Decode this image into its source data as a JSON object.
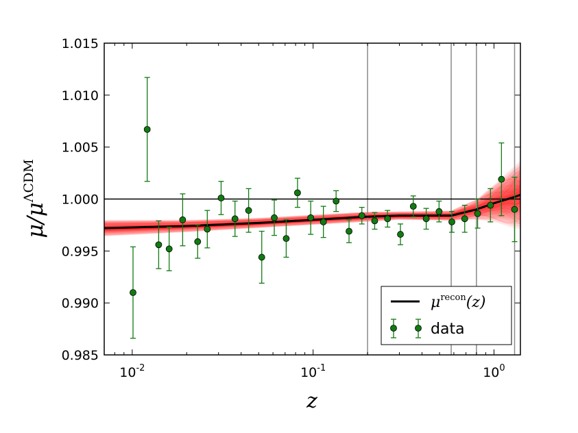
{
  "chart_data": {
    "type": "scatter",
    "title": "",
    "xlabel": "z",
    "ylabel_parts": {
      "base": "μ/μ",
      "sup": "ΛCDM"
    },
    "xscale": "log",
    "xlim": [
      0.007,
      1.4
    ],
    "ylim": [
      0.985,
      1.015
    ],
    "yticks": [
      "0.985",
      "0.990",
      "0.995",
      "1.000",
      "1.005",
      "1.010",
      "1.015"
    ],
    "xticks": [
      {
        "value": 0.01,
        "base": "10",
        "exp": "-2"
      },
      {
        "value": 0.1,
        "base": "10",
        "exp": "-1"
      },
      {
        "value": 1.0,
        "base": "10",
        "exp": "0"
      }
    ],
    "grid": false,
    "reference_line": {
      "y": 1.0
    },
    "vertical_lines": [
      0.2,
      0.58,
      0.8,
      1.3
    ],
    "legend": {
      "placement": "bottom-right",
      "entries": [
        {
          "label_base": "μ",
          "label_sup": "recon",
          "label_tail": "(z)",
          "kind": "line"
        },
        {
          "label": "data",
          "kind": "errorbar"
        }
      ]
    },
    "series": [
      {
        "name": "data",
        "color": "#117a11",
        "points": [
          {
            "x": 0.0101,
            "y": 0.991,
            "err": 0.0044
          },
          {
            "x": 0.0121,
            "y": 1.0067,
            "err": 0.005
          },
          {
            "x": 0.014,
            "y": 0.9956,
            "err": 0.0023
          },
          {
            "x": 0.016,
            "y": 0.9952,
            "err": 0.0021
          },
          {
            "x": 0.019,
            "y": 0.998,
            "err": 0.0025
          },
          {
            "x": 0.023,
            "y": 0.9959,
            "err": 0.0016
          },
          {
            "x": 0.026,
            "y": 0.9971,
            "err": 0.0018
          },
          {
            "x": 0.031,
            "y": 1.0001,
            "err": 0.0016
          },
          {
            "x": 0.037,
            "y": 0.9981,
            "err": 0.0017
          },
          {
            "x": 0.044,
            "y": 0.9989,
            "err": 0.0021
          },
          {
            "x": 0.052,
            "y": 0.9944,
            "err": 0.0025
          },
          {
            "x": 0.061,
            "y": 0.9982,
            "err": 0.0017
          },
          {
            "x": 0.071,
            "y": 0.9962,
            "err": 0.0018
          },
          {
            "x": 0.082,
            "y": 1.0006,
            "err": 0.0014
          },
          {
            "x": 0.097,
            "y": 0.9982,
            "err": 0.0016
          },
          {
            "x": 0.114,
            "y": 0.9978,
            "err": 0.0015
          },
          {
            "x": 0.134,
            "y": 0.9998,
            "err": 0.001
          },
          {
            "x": 0.158,
            "y": 0.9969,
            "err": 0.0011
          },
          {
            "x": 0.186,
            "y": 0.9984,
            "err": 0.0008
          },
          {
            "x": 0.219,
            "y": 0.9979,
            "err": 0.0008
          },
          {
            "x": 0.258,
            "y": 0.9981,
            "err": 0.0008
          },
          {
            "x": 0.304,
            "y": 0.9966,
            "err": 0.001
          },
          {
            "x": 0.358,
            "y": 0.9993,
            "err": 0.001
          },
          {
            "x": 0.422,
            "y": 0.9981,
            "err": 0.001
          },
          {
            "x": 0.497,
            "y": 0.9988,
            "err": 0.001
          },
          {
            "x": 0.585,
            "y": 0.9978,
            "err": 0.001
          },
          {
            "x": 0.689,
            "y": 0.9981,
            "err": 0.0013
          },
          {
            "x": 0.812,
            "y": 0.9986,
            "err": 0.0014
          },
          {
            "x": 0.956,
            "y": 0.9994,
            "err": 0.0016
          },
          {
            "x": 1.1,
            "y": 1.0019,
            "err": 0.0035
          },
          {
            "x": 1.3,
            "y": 0.999,
            "err": 0.0031
          }
        ]
      },
      {
        "name": "μrecon(z)",
        "color": "#000000",
        "band_color": "#ff0000",
        "points": [
          {
            "x": 0.007,
            "y": 0.9972,
            "band": 0.0008
          },
          {
            "x": 0.02,
            "y": 0.9974,
            "band": 0.0006
          },
          {
            "x": 0.05,
            "y": 0.9977,
            "band": 0.0005
          },
          {
            "x": 0.1,
            "y": 0.998,
            "band": 0.0005
          },
          {
            "x": 0.2,
            "y": 0.9983,
            "band": 0.0005
          },
          {
            "x": 0.3,
            "y": 0.9984,
            "band": 0.0004
          },
          {
            "x": 0.58,
            "y": 0.9984,
            "band": 0.0005
          },
          {
            "x": 0.8,
            "y": 0.999,
            "band": 0.001
          },
          {
            "x": 1.0,
            "y": 0.9996,
            "band": 0.0018
          },
          {
            "x": 1.3,
            "y": 1.0002,
            "band": 0.003
          }
        ]
      }
    ]
  }
}
